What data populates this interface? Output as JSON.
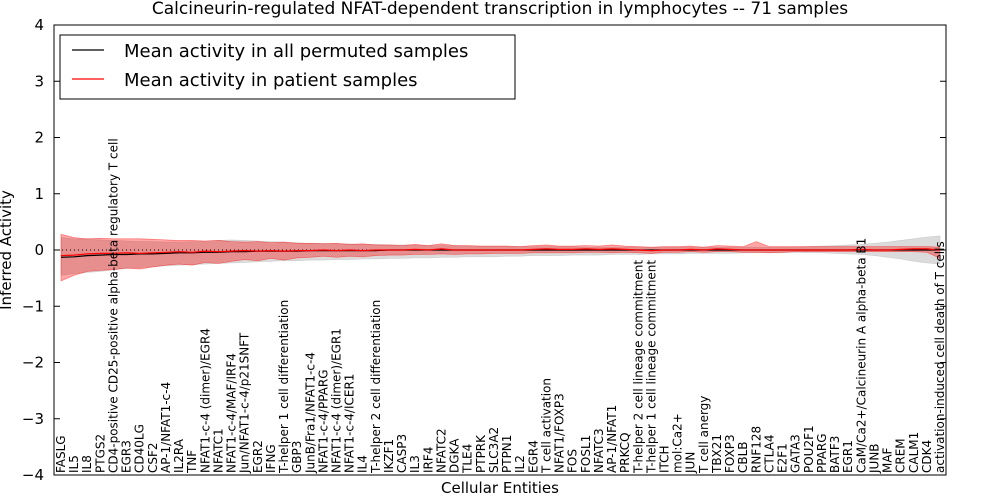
{
  "chart_data": {
    "type": "line",
    "title": "Calcineurin-regulated NFAT-dependent transcription in lymphocytes -- 71 samples",
    "xlabel": "Cellular Entities",
    "ylabel": "Inferred Activity",
    "ylim": [
      -4,
      4
    ],
    "yticks": [
      4,
      3,
      2,
      1,
      0,
      -1,
      -2,
      -3,
      -4
    ],
    "ytick_labels": [
      "4",
      "3",
      "2",
      "1",
      "0",
      "−1",
      "−2",
      "−3",
      "−4"
    ],
    "legend_position": "top-left",
    "categories": [
      "FASLG",
      "IL5",
      "IL8",
      "PTGS2",
      "CD4-positive CD25-positive alpha-beta regulatory T cell",
      "EGR3",
      "CD40LG",
      "CSF2",
      "AP-1/NFAT1-c-4",
      "IL2RA",
      "TNF",
      "NFAT1-c-4 (dimer)/EGR4",
      "NFATC1",
      "NFAT1-c-4/MAF/IRF4",
      "Jun/NFAT1-c-4/p21SNFT",
      "EGR2",
      "IFNG",
      "T-helper 1 cell differentiation",
      "GBP3",
      "JunB/Fra1/NFAT1-c-4",
      "NFAT1-c-4/PPARG",
      "NFAT1-c-4 (dimer)/EGR1",
      "NFAT1-c-4/ICER1",
      "IL4",
      "T-helper 2 cell differentiation",
      "IKZF1",
      "CASP3",
      "IL3",
      "IRF4",
      "NFATC2",
      "DGKA",
      "TLE4",
      "PTPRK",
      "SLC3A2",
      "PTPN1",
      "IL2",
      "EGR4",
      "T cell activation",
      "NFAT1/FOXP3",
      "FOS",
      "FOSL1",
      "NFATC3",
      "AP-1/NFAT1",
      "PRKCQ",
      "T-helper 2 cell lineage commitment",
      "T-helper 1 cell lineage commitment",
      "ITCH",
      "mol:Ca2+",
      "JUN",
      "T cell anergy",
      "TBX21",
      "FOXP3",
      "CBLB",
      "RNF128",
      "CTLA4",
      "E2F1",
      "GATA3",
      "POU2F1",
      "PPARG",
      "BATF3",
      "EGR1",
      "CaM/Ca2+/Calcineurin A alpha-beta B1",
      "JUNB",
      "MAF",
      "CREM",
      "CALM1",
      "CDK4",
      "activation-induced cell death of T cells"
    ],
    "series": [
      {
        "name": "Mean activity in all permuted samples",
        "color": "#000000",
        "values": [
          -0.13,
          -0.12,
          -0.1,
          -0.09,
          -0.08,
          -0.08,
          -0.07,
          -0.07,
          -0.06,
          -0.05,
          -0.05,
          -0.04,
          -0.04,
          -0.03,
          -0.03,
          -0.02,
          -0.02,
          -0.02,
          -0.02,
          -0.01,
          -0.01,
          -0.01,
          -0.01,
          -0.01,
          -0.01,
          0.0,
          0.0,
          0.0,
          0.0,
          0.0,
          0.0,
          0.0,
          0.0,
          0.0,
          0.0,
          0.0,
          0.0,
          0.0,
          0.0,
          0.0,
          0.0,
          0.0,
          0.0,
          0.0,
          0.0,
          0.0,
          0.0,
          0.0,
          0.0,
          0.0,
          0.0,
          0.0,
          0.0,
          0.0,
          0.0,
          0.0,
          0.0,
          0.0,
          0.0,
          0.0,
          0.0,
          0.0,
          0.0,
          0.0,
          0.0,
          0.0,
          0.0,
          0.0
        ],
        "band_low": [
          -0.45,
          -0.42,
          -0.4,
          -0.38,
          -0.35,
          -0.33,
          -0.31,
          -0.3,
          -0.28,
          -0.27,
          -0.26,
          -0.25,
          -0.24,
          -0.23,
          -0.22,
          -0.21,
          -0.2,
          -0.19,
          -0.19,
          -0.18,
          -0.18,
          -0.17,
          -0.17,
          -0.16,
          -0.16,
          -0.15,
          -0.15,
          -0.14,
          -0.14,
          -0.13,
          -0.13,
          -0.12,
          -0.12,
          -0.12,
          -0.11,
          -0.11,
          -0.1,
          -0.1,
          -0.1,
          -0.09,
          -0.09,
          -0.09,
          -0.08,
          -0.08,
          -0.08,
          -0.07,
          -0.07,
          -0.07,
          -0.06,
          -0.06,
          -0.06,
          -0.06,
          -0.05,
          -0.05,
          -0.05,
          -0.05,
          -0.04,
          -0.05,
          -0.05,
          -0.06,
          -0.07,
          -0.08,
          -0.1,
          -0.13,
          -0.16,
          -0.2,
          -0.23,
          -0.25
        ],
        "band_high": [
          0.22,
          0.2,
          0.19,
          0.18,
          0.17,
          0.16,
          0.15,
          0.15,
          0.14,
          0.14,
          0.15,
          0.16,
          0.17,
          0.18,
          0.17,
          0.16,
          0.15,
          0.14,
          0.13,
          0.12,
          0.12,
          0.11,
          0.11,
          0.1,
          0.1,
          0.09,
          0.09,
          0.09,
          0.08,
          0.08,
          0.08,
          0.07,
          0.07,
          0.07,
          0.07,
          0.06,
          0.06,
          0.06,
          0.06,
          0.06,
          0.05,
          0.05,
          0.05,
          0.05,
          0.05,
          0.05,
          0.05,
          0.05,
          0.05,
          0.05,
          0.05,
          0.05,
          0.05,
          0.05,
          0.05,
          0.05,
          0.05,
          0.06,
          0.07,
          0.08,
          0.09,
          0.1,
          0.12,
          0.14,
          0.17,
          0.2,
          0.23,
          0.25
        ]
      },
      {
        "name": "Mean activity in patient samples",
        "color": "#ff0000",
        "values": [
          -0.1,
          -0.09,
          -0.07,
          -0.06,
          -0.06,
          -0.05,
          -0.06,
          -0.05,
          -0.04,
          -0.03,
          -0.04,
          -0.02,
          -0.03,
          -0.02,
          -0.01,
          -0.02,
          -0.01,
          -0.02,
          -0.01,
          -0.01,
          0.0,
          -0.01,
          0.0,
          -0.01,
          0.0,
          0.0,
          0.0,
          0.01,
          0.0,
          0.02,
          0.0,
          0.0,
          0.0,
          0.0,
          0.0,
          0.0,
          0.01,
          0.02,
          0.01,
          0.01,
          0.02,
          0.01,
          0.02,
          0.01,
          0.0,
          -0.01,
          0.0,
          0.0,
          0.01,
          0.0,
          0.02,
          0.01,
          0.0,
          0.0,
          0.0,
          0.0,
          0.0,
          0.0,
          0.0,
          0.0,
          0.0,
          0.01,
          0.0,
          0.0,
          0.01,
          0.02,
          0.02,
          0.0
        ],
        "band_low": [
          -0.55,
          -0.45,
          -0.38,
          -0.36,
          -0.35,
          -0.32,
          -0.34,
          -0.3,
          -0.27,
          -0.25,
          -0.27,
          -0.22,
          -0.24,
          -0.2,
          -0.17,
          -0.19,
          -0.15,
          -0.18,
          -0.14,
          -0.13,
          -0.11,
          -0.13,
          -0.11,
          -0.12,
          -0.1,
          -0.09,
          -0.09,
          -0.08,
          -0.08,
          -0.07,
          -0.08,
          -0.07,
          -0.07,
          -0.06,
          -0.06,
          -0.06,
          -0.05,
          -0.05,
          -0.05,
          -0.05,
          -0.04,
          -0.04,
          -0.05,
          -0.04,
          -0.05,
          -0.06,
          -0.04,
          -0.04,
          -0.03,
          -0.04,
          -0.03,
          -0.03,
          -0.04,
          -0.04,
          -0.05,
          -0.04,
          -0.03,
          -0.03,
          -0.03,
          -0.03,
          -0.03,
          -0.03,
          -0.03,
          -0.03,
          -0.03,
          -0.03,
          -0.04,
          -0.15
        ],
        "band_high": [
          0.28,
          0.22,
          0.2,
          0.21,
          0.2,
          0.2,
          0.2,
          0.19,
          0.18,
          0.17,
          0.17,
          0.16,
          0.17,
          0.15,
          0.14,
          0.15,
          0.13,
          0.14,
          0.12,
          0.12,
          0.11,
          0.12,
          0.1,
          0.11,
          0.09,
          0.09,
          0.08,
          0.1,
          0.08,
          0.11,
          0.08,
          0.08,
          0.07,
          0.07,
          0.07,
          0.06,
          0.08,
          0.09,
          0.07,
          0.07,
          0.08,
          0.07,
          0.09,
          0.07,
          0.06,
          0.05,
          0.06,
          0.06,
          0.07,
          0.05,
          0.08,
          0.07,
          0.06,
          0.15,
          0.06,
          0.06,
          0.06,
          0.06,
          0.06,
          0.06,
          0.06,
          0.06,
          0.06,
          0.06,
          0.06,
          0.06,
          0.06,
          0.05
        ]
      }
    ]
  }
}
